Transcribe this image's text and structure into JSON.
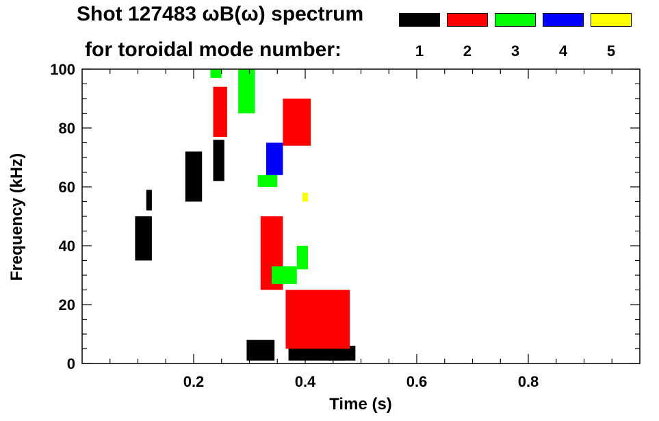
{
  "title": {
    "line1": "Shot 127483 ωB(ω) spectrum",
    "line2": "for toroidal mode number:"
  },
  "legend": [
    {
      "label": "1",
      "color": "#000000"
    },
    {
      "label": "2",
      "color": "#ff0000"
    },
    {
      "label": "3",
      "color": "#00ff00"
    },
    {
      "label": "4",
      "color": "#0000ff"
    },
    {
      "label": "5",
      "color": "#ffff00"
    }
  ],
  "chart_data": {
    "type": "heatmap",
    "title": "Shot 127483 ωB(ω) spectrum for toroidal mode number",
    "xlabel": "Time (s)",
    "ylabel": "Frequency (kHz)",
    "xlim": [
      0.0,
      1.0
    ],
    "ylim": [
      0,
      100
    ],
    "xticks": [
      0.2,
      0.4,
      0.6,
      0.8
    ],
    "xtick_labels": [
      "0.2",
      "0.4",
      "0.6",
      "0.8"
    ],
    "yticks": [
      0,
      20,
      40,
      60,
      80,
      100
    ],
    "ytick_labels": [
      "0",
      "20",
      "40",
      "60",
      "80",
      "100"
    ],
    "grid": false,
    "legend_position": "top-right",
    "regions": [
      {
        "mode": 1,
        "t0": 0.095,
        "t1": 0.125,
        "f0": 35,
        "f1": 50
      },
      {
        "mode": 1,
        "t0": 0.115,
        "t1": 0.125,
        "f0": 52,
        "f1": 59
      },
      {
        "mode": 1,
        "t0": 0.185,
        "t1": 0.215,
        "f0": 55,
        "f1": 72
      },
      {
        "mode": 1,
        "t0": 0.235,
        "t1": 0.255,
        "f0": 62,
        "f1": 76
      },
      {
        "mode": 1,
        "t0": 0.295,
        "t1": 0.345,
        "f0": 1,
        "f1": 8
      },
      {
        "mode": 1,
        "t0": 0.37,
        "t1": 0.47,
        "f0": 1,
        "f1": 20
      },
      {
        "mode": 1,
        "t0": 0.44,
        "t1": 0.49,
        "f0": 1,
        "f1": 6
      },
      {
        "mode": 2,
        "t0": 0.235,
        "t1": 0.26,
        "f0": 77,
        "f1": 94
      },
      {
        "mode": 2,
        "t0": 0.32,
        "t1": 0.36,
        "f0": 25,
        "f1": 50
      },
      {
        "mode": 2,
        "t0": 0.36,
        "t1": 0.41,
        "f0": 74,
        "f1": 90
      },
      {
        "mode": 2,
        "t0": 0.365,
        "t1": 0.48,
        "f0": 5,
        "f1": 25
      },
      {
        "mode": 3,
        "t0": 0.28,
        "t1": 0.31,
        "f0": 85,
        "f1": 100
      },
      {
        "mode": 3,
        "t0": 0.315,
        "t1": 0.35,
        "f0": 60,
        "f1": 64
      },
      {
        "mode": 3,
        "t0": 0.34,
        "t1": 0.385,
        "f0": 27,
        "f1": 33
      },
      {
        "mode": 3,
        "t0": 0.385,
        "t1": 0.405,
        "f0": 32,
        "f1": 40
      },
      {
        "mode": 3,
        "t0": 0.23,
        "t1": 0.25,
        "f0": 97,
        "f1": 100
      },
      {
        "mode": 4,
        "t0": 0.33,
        "t1": 0.36,
        "f0": 64,
        "f1": 75
      },
      {
        "mode": 5,
        "t0": 0.395,
        "t1": 0.405,
        "f0": 55,
        "f1": 58
      }
    ]
  }
}
